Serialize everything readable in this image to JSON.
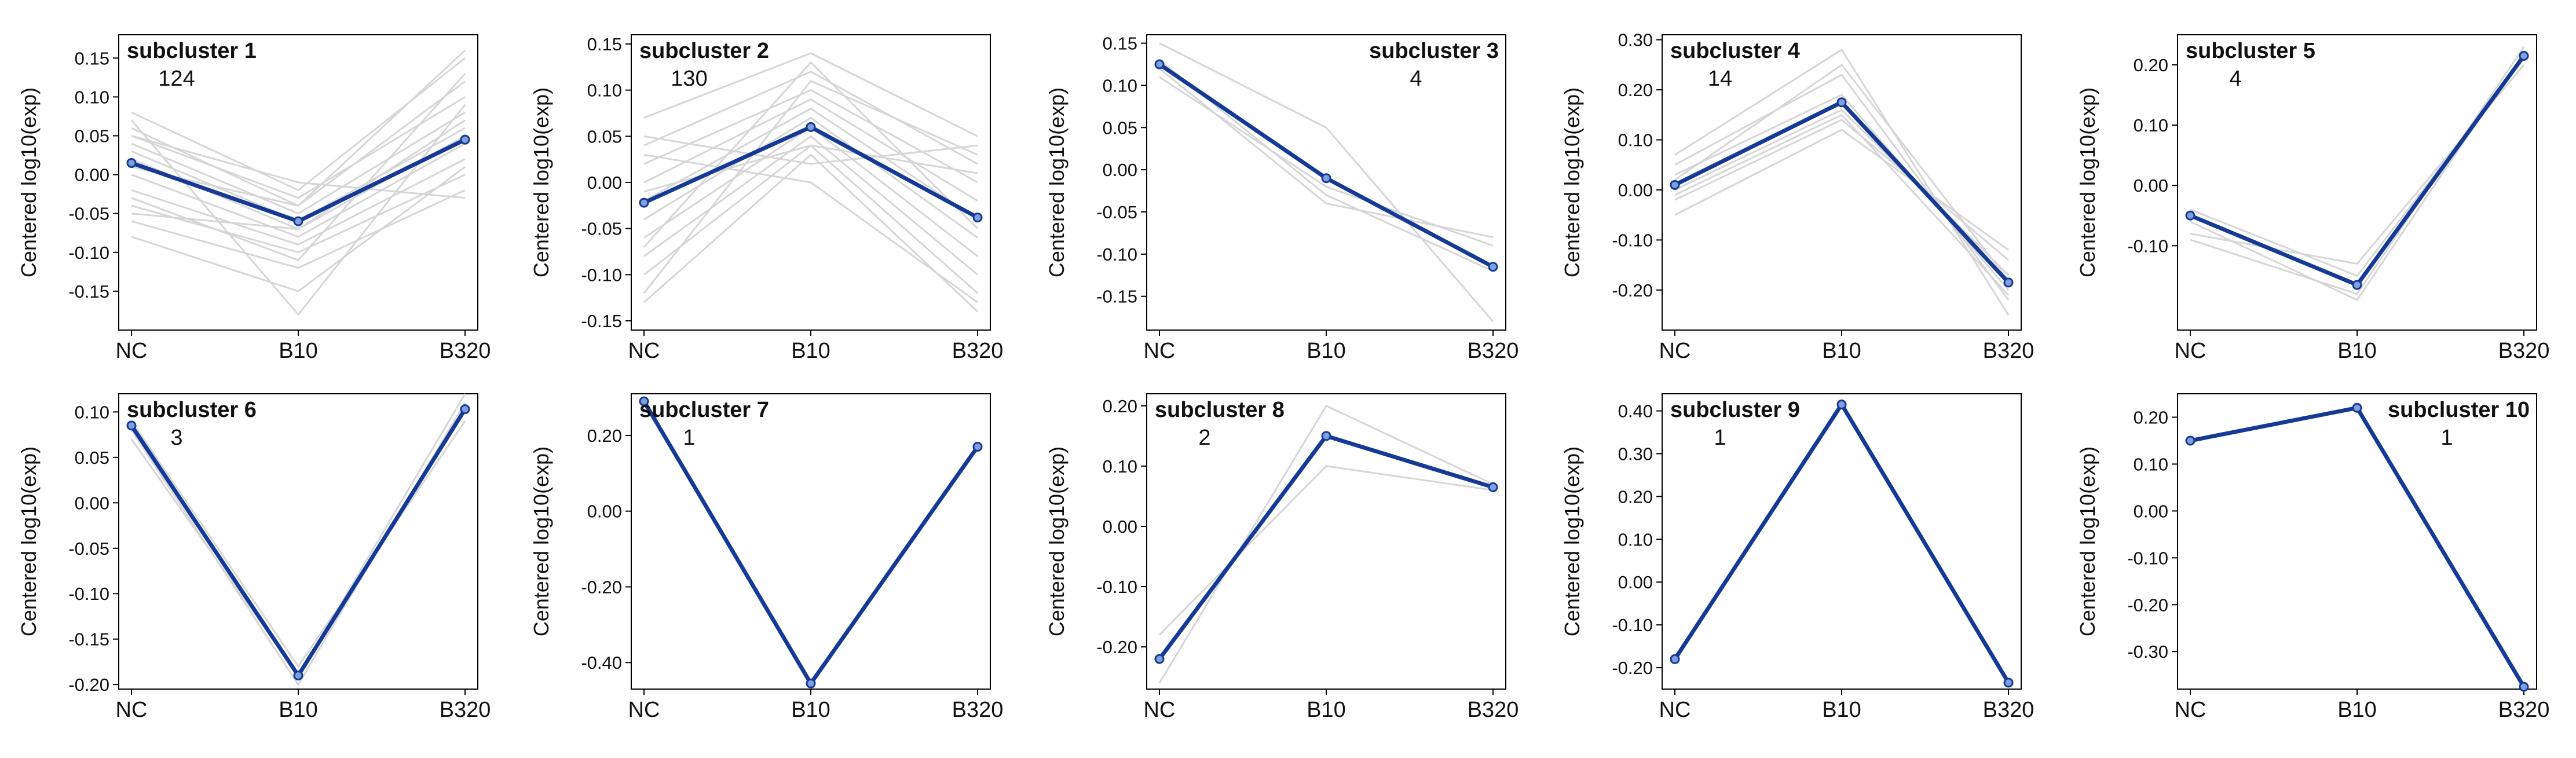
{
  "colors": {
    "mean_line": "#143a96",
    "member_line": "#d6d6d6",
    "frame": "#000000",
    "background": "#ffffff"
  },
  "chart_data": [
    {
      "type": "line",
      "title": "subcluster 1",
      "count": "124",
      "xlabel": "",
      "ylabel": "Centered log10(exp)",
      "categories": [
        "NC",
        "B10",
        "B320"
      ],
      "ylim": [
        -0.2,
        0.18
      ],
      "yticks": [
        -0.15,
        -0.1,
        -0.05,
        0.0,
        0.05,
        0.1,
        0.15
      ],
      "ytick_labels": [
        "-0.15",
        "-0.10",
        "-0.05",
        "0.00",
        "0.05",
        "0.10",
        "0.15"
      ],
      "title_pos": "top-left",
      "mean": [
        0.015,
        -0.06,
        0.045
      ],
      "members": [
        [
          0.08,
          -0.02,
          0.15
        ],
        [
          0.06,
          -0.04,
          0.12
        ],
        [
          0.05,
          -0.03,
          0.1
        ],
        [
          0.04,
          -0.05,
          0.08
        ],
        [
          0.03,
          -0.06,
          0.06
        ],
        [
          0.02,
          -0.07,
          0.05
        ],
        [
          0.0,
          -0.08,
          0.04
        ],
        [
          -0.02,
          -0.09,
          0.02
        ],
        [
          -0.04,
          -0.1,
          0.0
        ],
        [
          -0.06,
          -0.12,
          -0.02
        ],
        [
          -0.08,
          -0.15,
          0.01
        ],
        [
          0.07,
          -0.18,
          0.09
        ],
        [
          -0.03,
          -0.11,
          0.13
        ],
        [
          0.05,
          -0.01,
          -0.03
        ],
        [
          0.01,
          -0.04,
          0.16
        ],
        [
          -0.05,
          -0.07,
          0.07
        ]
      ]
    },
    {
      "type": "line",
      "title": "subcluster 2",
      "count": "130",
      "xlabel": "",
      "ylabel": "Centered log10(exp)",
      "categories": [
        "NC",
        "B10",
        "B320"
      ],
      "ylim": [
        -0.16,
        0.16
      ],
      "yticks": [
        -0.15,
        -0.1,
        -0.05,
        0.0,
        0.05,
        0.1,
        0.15
      ],
      "ytick_labels": [
        "-0.15",
        "-0.10",
        "-0.05",
        "0.00",
        "0.05",
        "0.10",
        "0.15"
      ],
      "title_pos": "top-left",
      "mean": [
        -0.022,
        0.06,
        -0.038
      ],
      "members": [
        [
          0.07,
          0.14,
          0.05
        ],
        [
          0.04,
          0.12,
          0.02
        ],
        [
          0.02,
          0.1,
          0.0
        ],
        [
          0.0,
          0.09,
          -0.02
        ],
        [
          -0.02,
          0.08,
          -0.04
        ],
        [
          -0.04,
          0.07,
          -0.06
        ],
        [
          -0.06,
          0.06,
          -0.08
        ],
        [
          -0.08,
          0.05,
          -0.1
        ],
        [
          -0.1,
          0.04,
          -0.12
        ],
        [
          -0.13,
          0.03,
          -0.14
        ],
        [
          0.05,
          0.02,
          0.04
        ],
        [
          -0.12,
          0.11,
          0.03
        ],
        [
          0.03,
          0.0,
          -0.13
        ],
        [
          -0.07,
          0.13,
          -0.05
        ],
        [
          -0.01,
          0.04,
          0.01
        ]
      ]
    },
    {
      "type": "line",
      "title": "subcluster 3",
      "count": "4",
      "xlabel": "",
      "ylabel": "Centered log10(exp)",
      "categories": [
        "NC",
        "B10",
        "B320"
      ],
      "ylim": [
        -0.19,
        0.16
      ],
      "yticks": [
        -0.15,
        -0.1,
        -0.05,
        0.0,
        0.05,
        0.1,
        0.15
      ],
      "ytick_labels": [
        "-0.15",
        "-0.10",
        "-0.05",
        "0.00",
        "0.05",
        "0.10",
        "0.15"
      ],
      "title_pos": "top-right",
      "mean": [
        0.125,
        -0.01,
        -0.115
      ],
      "members": [
        [
          0.15,
          0.05,
          -0.18
        ],
        [
          0.13,
          -0.03,
          -0.12
        ],
        [
          0.12,
          -0.04,
          -0.08
        ],
        [
          0.11,
          -0.02,
          -0.09
        ]
      ]
    },
    {
      "type": "line",
      "title": "subcluster 4",
      "count": "14",
      "xlabel": "",
      "ylabel": "Centered log10(exp)",
      "categories": [
        "NC",
        "B10",
        "B320"
      ],
      "ylim": [
        -0.28,
        0.31
      ],
      "yticks": [
        -0.2,
        -0.1,
        0.0,
        0.1,
        0.2,
        0.3
      ],
      "ytick_labels": [
        "-0.20",
        "-0.10",
        "0.00",
        "0.10",
        "0.20",
        "0.30"
      ],
      "title_pos": "top-left",
      "mean": [
        0.01,
        0.175,
        -0.185
      ],
      "members": [
        [
          0.07,
          0.28,
          -0.25
        ],
        [
          0.05,
          0.23,
          -0.22
        ],
        [
          0.03,
          0.19,
          -0.2
        ],
        [
          0.0,
          0.16,
          -0.17
        ],
        [
          -0.02,
          0.14,
          -0.14
        ],
        [
          -0.05,
          0.12,
          -0.12
        ],
        [
          0.02,
          0.25,
          -0.18
        ],
        [
          -0.01,
          0.15,
          -0.21
        ]
      ]
    },
    {
      "type": "line",
      "title": "subcluster 5",
      "count": "4",
      "xlabel": "",
      "ylabel": "Centered log10(exp)",
      "categories": [
        "NC",
        "B10",
        "B320"
      ],
      "ylim": [
        -0.24,
        0.25
      ],
      "yticks": [
        -0.1,
        0.0,
        0.1,
        0.2
      ],
      "ytick_labels": [
        "-0.10",
        "0.00",
        "0.10",
        "0.20"
      ],
      "title_pos": "top-left",
      "mean": [
        -0.05,
        -0.165,
        0.215
      ],
      "members": [
        [
          -0.04,
          -0.15,
          0.21
        ],
        [
          -0.08,
          -0.13,
          0.2
        ],
        [
          -0.06,
          -0.19,
          0.22
        ],
        [
          -0.09,
          -0.18,
          0.23
        ]
      ]
    },
    {
      "type": "line",
      "title": "subcluster 6",
      "count": "3",
      "xlabel": "",
      "ylabel": "Centered log10(exp)",
      "categories": [
        "NC",
        "B10",
        "B320"
      ],
      "ylim": [
        -0.205,
        0.12
      ],
      "yticks": [
        -0.2,
        -0.15,
        -0.1,
        -0.05,
        0.0,
        0.05,
        0.1
      ],
      "ytick_labels": [
        "-0.20",
        "-0.15",
        "-0.10",
        "-0.05",
        "0.00",
        "0.05",
        "0.10"
      ],
      "title_pos": "top-left",
      "mean": [
        0.085,
        -0.19,
        0.103
      ],
      "members": [
        [
          0.09,
          -0.18,
          0.09
        ],
        [
          0.08,
          -0.2,
          0.11
        ],
        [
          0.07,
          -0.19,
          0.12
        ]
      ]
    },
    {
      "type": "line",
      "title": "subcluster 7",
      "count": "1",
      "xlabel": "",
      "ylabel": "Centered log10(exp)",
      "categories": [
        "NC",
        "B10",
        "B320"
      ],
      "ylim": [
        -0.47,
        0.31
      ],
      "yticks": [
        -0.4,
        -0.2,
        0.0,
        0.2
      ],
      "ytick_labels": [
        "-0.40",
        "-0.20",
        "0.00",
        "0.20"
      ],
      "title_pos": "top-left",
      "mean": [
        0.29,
        -0.455,
        0.17
      ],
      "members": [
        [
          0.29,
          -0.455,
          0.17
        ]
      ]
    },
    {
      "type": "line",
      "title": "subcluster 8",
      "count": "2",
      "xlabel": "",
      "ylabel": "Centered log10(exp)",
      "categories": [
        "NC",
        "B10",
        "B320"
      ],
      "ylim": [
        -0.27,
        0.22
      ],
      "yticks": [
        -0.2,
        -0.1,
        0.0,
        0.1,
        0.2
      ],
      "ytick_labels": [
        "-0.20",
        "-0.10",
        "0.00",
        "0.10",
        "0.20"
      ],
      "title_pos": "top-left",
      "mean": [
        -0.22,
        0.15,
        0.065
      ],
      "members": [
        [
          -0.26,
          0.2,
          0.07
        ],
        [
          -0.18,
          0.1,
          0.06
        ]
      ]
    },
    {
      "type": "line",
      "title": "subcluster 9",
      "count": "1",
      "xlabel": "",
      "ylabel": "Centered log10(exp)",
      "categories": [
        "NC",
        "B10",
        "B320"
      ],
      "ylim": [
        -0.25,
        0.44
      ],
      "yticks": [
        -0.2,
        -0.1,
        0.0,
        0.1,
        0.2,
        0.3,
        0.4
      ],
      "ytick_labels": [
        "-0.20",
        "-0.10",
        "0.00",
        "0.10",
        "0.20",
        "0.30",
        "0.40"
      ],
      "title_pos": "top-left",
      "mean": [
        -0.18,
        0.415,
        -0.235
      ],
      "members": [
        [
          -0.18,
          0.415,
          -0.235
        ]
      ]
    },
    {
      "type": "line",
      "title": "subcluster 10",
      "count": "1",
      "xlabel": "",
      "ylabel": "Centered log10(exp)",
      "categories": [
        "NC",
        "B10",
        "B320"
      ],
      "ylim": [
        -0.38,
        0.25
      ],
      "yticks": [
        -0.3,
        -0.2,
        -0.1,
        0.0,
        0.1,
        0.2
      ],
      "ytick_labels": [
        "-0.30",
        "-0.20",
        "-0.10",
        "0.00",
        "0.10",
        "0.20"
      ],
      "title_pos": "top-right",
      "mean": [
        0.15,
        0.22,
        -0.375
      ],
      "members": [
        [
          0.15,
          0.22,
          -0.375
        ]
      ]
    }
  ]
}
